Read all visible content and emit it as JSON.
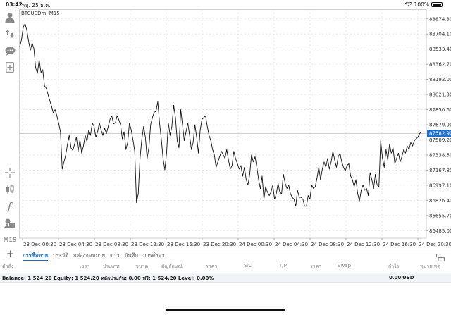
{
  "status": {
    "time": "03:42",
    "date": "พฤ. 25 ธ.ค.",
    "battery": "100%"
  },
  "chart": {
    "symbol": "BTCUSDm, M15",
    "price_labels": [
      "88874.30",
      "88704.10",
      "88533.40",
      "88362.70",
      "88192.00",
      "88021.30",
      "87850.60",
      "87679.90",
      "87509.20",
      "87338.50",
      "87167.80",
      "86997.10",
      "86826.40",
      "86655.70",
      "86485.00"
    ],
    "current_price": "87582.90",
    "time_labels": [
      "23 Dec 00:30",
      "23 Dec 04:30",
      "23 Dec 08:30",
      "23 Dec 12:30",
      "23 Dec 16:30",
      "23 Dec 20:30",
      "24 Dec 00:30",
      "24 Dec 04:30",
      "24 Dec 08:30",
      "24 Dec 12:30",
      "24 Dec 16:30",
      "24 Dec 20:30"
    ],
    "ylim": [
      86400,
      88960
    ],
    "line_color": "#111111",
    "current_line_color": "#bbbbbb",
    "label_color": "#1e6fd0"
  },
  "chart_data": {
    "type": "line",
    "title": "BTCUSDm, M15",
    "xlabel": "",
    "ylabel": "",
    "ylim": [
      86400,
      88960
    ],
    "grid": true,
    "series": [
      {
        "values": [
          88560,
          88640,
          88780,
          88820,
          88750,
          88620,
          88520,
          88600,
          88540,
          88320,
          88260,
          88410,
          88270,
          88300,
          88120,
          88090,
          88020,
          87950,
          87890,
          87810,
          87850,
          87780,
          87700,
          87600,
          87180,
          87260,
          87340,
          87460,
          87560,
          87420,
          87390,
          87460,
          87540,
          87380,
          87510,
          87360,
          87440,
          87560,
          87490,
          87620,
          87560,
          87700,
          87660,
          87540,
          87600,
          87700,
          87620,
          87560,
          87640,
          87580,
          87660,
          87740,
          87780,
          87690,
          87700,
          87780,
          87740,
          87680,
          87520,
          87600,
          87400,
          87480,
          87700,
          87620,
          87510,
          87380,
          86800,
          86900,
          87300,
          87520,
          87660,
          87540,
          87300,
          87420,
          87680,
          87760,
          87820,
          87830,
          87940,
          87700,
          87520,
          87300,
          87170,
          87360,
          87700,
          87560,
          87660,
          87900,
          87760,
          87500,
          87420,
          87850,
          87680,
          87500,
          87600,
          87700,
          87560,
          87400,
          87480,
          87680,
          87540,
          87360,
          87620,
          87740,
          87760,
          87780,
          87660,
          87560,
          87500,
          87400,
          87340,
          87200,
          87260,
          87320,
          87380,
          87340,
          87300,
          87400,
          87280,
          87180,
          87220,
          87380,
          87300,
          87240,
          87180,
          87220,
          87100,
          87200,
          87060,
          87000,
          87120,
          87340,
          87260,
          87320,
          87200,
          87060,
          86960,
          87100,
          86840,
          86980,
          86920,
          86880,
          86920,
          87000,
          86840,
          86900,
          87020,
          86920,
          86900,
          87120,
          87020,
          86960,
          87000,
          86900,
          86860,
          86840,
          86760,
          86940,
          86860,
          86860,
          86840,
          86760,
          86760,
          86880,
          86840,
          87000,
          86960,
          86980,
          87080,
          87200,
          87060,
          87180,
          87260,
          87200,
          87300,
          87180,
          87260,
          87380,
          87280,
          87200,
          87320,
          87360,
          87260,
          87200,
          87160,
          87220,
          87240,
          87100,
          87060,
          86980,
          87060,
          86900,
          86820,
          86940,
          87000,
          86940,
          86960,
          86880,
          87140,
          87060,
          86960,
          87120,
          87000,
          86980,
          87500,
          87300,
          87200,
          87400,
          87280,
          87460,
          87360,
          87420,
          87240,
          87300,
          87360,
          87260,
          87320,
          87400,
          87360,
          87440,
          87400,
          87480,
          87440,
          87500,
          87520,
          87540,
          87580,
          87600
        ]
      }
    ]
  },
  "tabs": [
    "การซื้อขาย",
    "ประวัติ",
    "กล่องจดหมาย",
    "ข่าว",
    "บันทึก",
    "การตั้งค่า"
  ],
  "columns": [
    "คำสั่ง",
    "เวลา",
    "ประเภท",
    "ขนาด",
    "สัญลักษณ์",
    "ราคา",
    "S/L",
    "T/P",
    "ราคา",
    "Swap",
    "กำไร",
    "หมายเหตุ"
  ],
  "balance": {
    "text": "Balance: 1 524.20 Equity: 1 524.20 หลักประกัน: 0.00 ฟรี: 1 524.20 Level: 0.00%",
    "amount": "0.00",
    "currency": "USD"
  },
  "toolbar": {
    "timeframe": "M15"
  },
  "icons": [
    "account-icon",
    "trade-icon",
    "chat-icon",
    "add-chart-icon",
    "crosshair-icon",
    "candles-icon",
    "indicator-icon",
    "objects-icon",
    "plus-icon",
    "layout-icon"
  ]
}
